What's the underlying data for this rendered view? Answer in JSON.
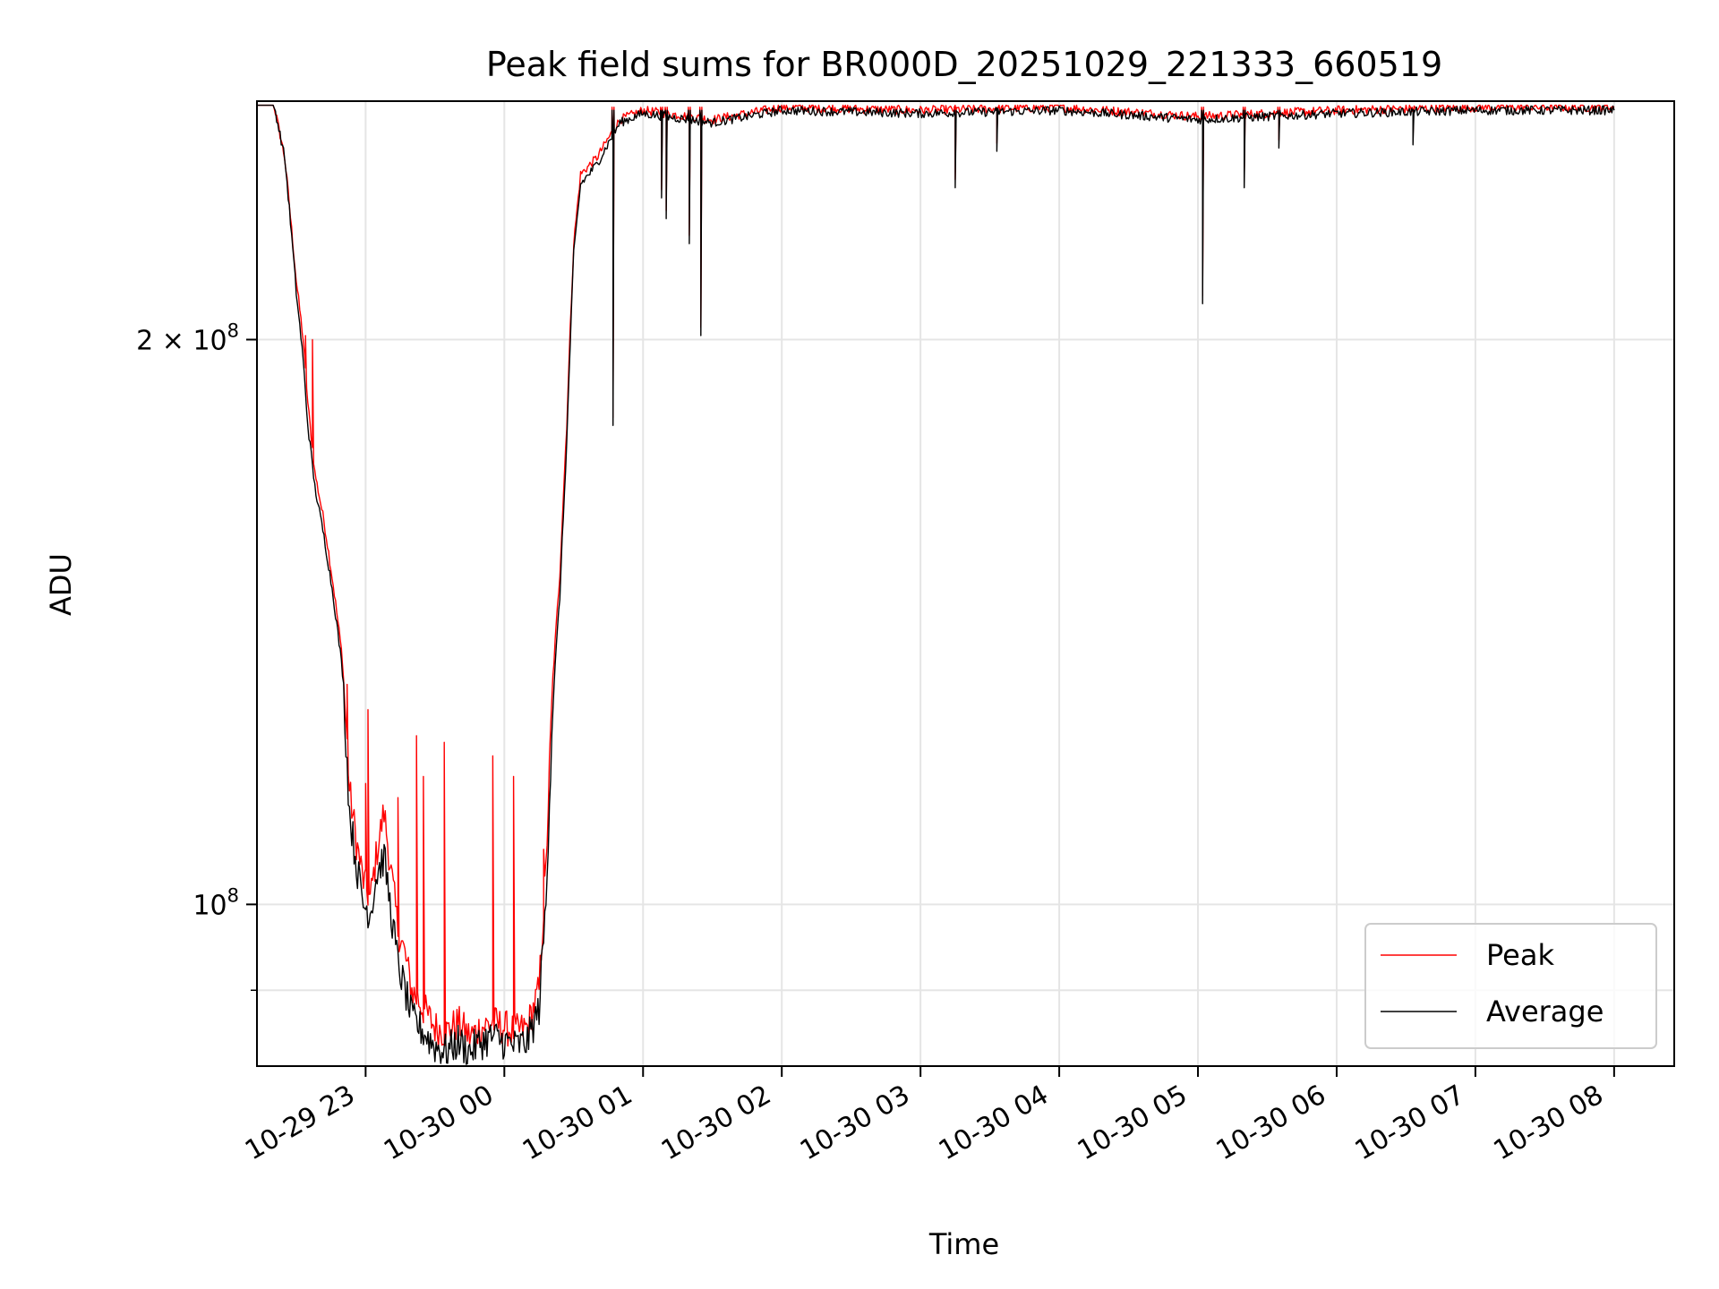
{
  "chart_data": {
    "type": "line",
    "title": "Peak field sums for BR000D_20251029_221333_660519",
    "xlabel": "Time",
    "ylabel": "ADU",
    "x_tick_labels": [
      "10-29 23",
      "10-30 00",
      "10-30 01",
      "10-30 02",
      "10-30 03",
      "10-30 04",
      "10-30 05",
      "10-30 06",
      "10-30 07",
      "10-30 08"
    ],
    "y_tick_labels": [
      {
        "value": 100000000,
        "base": "10",
        "exp": "8",
        "coef": ""
      },
      {
        "value": 200000000,
        "base": "10",
        "exp": "8",
        "coef": "2 × "
      }
    ],
    "y_scale": "log",
    "x_range_hours_rel_2025_10_29T22_00": [
      -0.77,
      9.43
    ],
    "xlim": [
      "2025-10-29 22:13",
      "2025-10-30 08:26"
    ],
    "ylim": [
      82000000,
      268000000
    ],
    "grid": true,
    "legend_position": "lower-right",
    "series": [
      {
        "name": "Peak",
        "color": "#ff0000",
        "points": [
          [
            "2025-10-29 22:13",
            268000000
          ],
          [
            "2025-10-29 22:20",
            268000000
          ],
          [
            "2025-10-29 22:25",
            250000000
          ],
          [
            "2025-10-29 22:30",
            215000000
          ],
          [
            "2025-10-29 22:33",
            200000000
          ],
          [
            "2025-10-29 22:35",
            185000000
          ],
          [
            "2025-10-29 22:38",
            170000000
          ],
          [
            "2025-10-29 22:42",
            160000000
          ],
          [
            "2025-10-29 22:46",
            148000000
          ],
          [
            "2025-10-29 22:50",
            135000000
          ],
          [
            "2025-10-29 22:53",
            115000000
          ],
          [
            "2025-10-29 22:56",
            108000000
          ],
          [
            "2025-10-29 22:59",
            103000000
          ],
          [
            "2025-10-29 23:02",
            100500000
          ],
          [
            "2025-10-29 23:05",
            107000000
          ],
          [
            "2025-10-29 23:08",
            112000000
          ],
          [
            "2025-10-29 23:11",
            104000000
          ],
          [
            "2025-10-29 23:14",
            97000000
          ],
          [
            "2025-10-29 23:17",
            94000000
          ],
          [
            "2025-10-29 23:20",
            90000000
          ],
          [
            "2025-10-29 23:25",
            88000000
          ],
          [
            "2025-10-29 23:30",
            86000000
          ],
          [
            "2025-10-29 23:35",
            85500000
          ],
          [
            "2025-10-29 23:40",
            86500000
          ],
          [
            "2025-10-29 23:45",
            85000000
          ],
          [
            "2025-10-29 23:50",
            86000000
          ],
          [
            "2025-10-29 23:55",
            86500000
          ],
          [
            "2025-10-30 00:00",
            86000000
          ],
          [
            "2025-10-30 00:05",
            85500000
          ],
          [
            "2025-10-30 00:10",
            86000000
          ],
          [
            "2025-10-30 00:15",
            90000000
          ],
          [
            "2025-10-30 00:18",
            104000000
          ],
          [
            "2025-10-30 00:21",
            132000000
          ],
          [
            "2025-10-30 00:24",
            150000000
          ],
          [
            "2025-10-30 00:27",
            180000000
          ],
          [
            "2025-10-30 00:30",
            225000000
          ],
          [
            "2025-10-30 00:33",
            245000000
          ],
          [
            "2025-10-30 00:40",
            250000000
          ],
          [
            "2025-10-30 00:50",
            262000000
          ],
          [
            "2025-10-30 01:00",
            265000000
          ],
          [
            "2025-10-30 01:30",
            262000000
          ],
          [
            "2025-10-30 02:00",
            266000000
          ],
          [
            "2025-10-30 03:00",
            265000000
          ],
          [
            "2025-10-30 04:00",
            266000000
          ],
          [
            "2025-10-30 05:00",
            263000000
          ],
          [
            "2025-10-30 06:00",
            265000000
          ],
          [
            "2025-10-30 07:00",
            266000000
          ],
          [
            "2025-10-30 08:00",
            266000000
          ]
        ]
      },
      {
        "name": "Average",
        "color": "#000000",
        "points": [
          [
            "2025-10-29 22:13",
            268000000
          ],
          [
            "2025-10-29 22:20",
            268000000
          ],
          [
            "2025-10-29 22:25",
            250000000
          ],
          [
            "2025-10-29 22:30",
            212000000
          ],
          [
            "2025-10-29 22:33",
            195000000
          ],
          [
            "2025-10-29 22:35",
            180000000
          ],
          [
            "2025-10-29 22:38",
            167000000
          ],
          [
            "2025-10-29 22:42",
            157000000
          ],
          [
            "2025-10-29 22:46",
            146000000
          ],
          [
            "2025-10-29 22:50",
            133000000
          ],
          [
            "2025-10-29 22:53",
            112000000
          ],
          [
            "2025-10-29 22:56",
            105000000
          ],
          [
            "2025-10-29 22:59",
            100000000
          ],
          [
            "2025-10-29 23:02",
            99000000
          ],
          [
            "2025-10-29 23:05",
            104000000
          ],
          [
            "2025-10-29 23:08",
            106000000
          ],
          [
            "2025-10-29 23:11",
            99000000
          ],
          [
            "2025-10-29 23:14",
            93000000
          ],
          [
            "2025-10-29 23:17",
            90000000
          ],
          [
            "2025-10-29 23:20",
            87000000
          ],
          [
            "2025-10-29 23:25",
            85500000
          ],
          [
            "2025-10-29 23:30",
            84000000
          ],
          [
            "2025-10-29 23:35",
            83500000
          ],
          [
            "2025-10-29 23:40",
            84500000
          ],
          [
            "2025-10-29 23:45",
            83500000
          ],
          [
            "2025-10-29 23:50",
            84500000
          ],
          [
            "2025-10-29 23:55",
            85000000
          ],
          [
            "2025-10-30 00:00",
            84500000
          ],
          [
            "2025-10-30 00:05",
            84000000
          ],
          [
            "2025-10-30 00:10",
            84500000
          ],
          [
            "2025-10-30 00:15",
            88000000
          ],
          [
            "2025-10-30 00:18",
            100000000
          ],
          [
            "2025-10-30 00:21",
            128000000
          ],
          [
            "2025-10-30 00:24",
            146000000
          ],
          [
            "2025-10-30 00:27",
            176000000
          ],
          [
            "2025-10-30 00:30",
            222000000
          ],
          [
            "2025-10-30 00:33",
            242000000
          ],
          [
            "2025-10-30 00:40",
            248000000
          ],
          [
            "2025-10-30 00:50",
            261000000
          ],
          [
            "2025-10-30 01:00",
            264000000
          ],
          [
            "2025-10-30 01:30",
            261000000
          ],
          [
            "2025-10-30 02:00",
            265000000
          ],
          [
            "2025-10-30 03:00",
            264000000
          ],
          [
            "2025-10-30 04:00",
            265000000
          ],
          [
            "2025-10-30 05:00",
            262000000
          ],
          [
            "2025-10-30 06:00",
            264000000
          ],
          [
            "2025-10-30 07:00",
            265000000
          ],
          [
            "2025-10-30 08:00",
            265000000
          ]
        ]
      }
    ],
    "dips": [
      [
        "2025-10-30 00:47",
        180000000
      ],
      [
        "2025-10-30 01:08",
        238000000
      ],
      [
        "2025-10-30 01:10",
        232000000
      ],
      [
        "2025-10-30 01:20",
        225000000
      ],
      [
        "2025-10-30 01:25",
        201000000
      ],
      [
        "2025-10-30 03:15",
        241000000
      ],
      [
        "2025-10-30 03:33",
        252000000
      ],
      [
        "2025-10-30 05:02",
        209000000
      ],
      [
        "2025-10-30 05:20",
        241000000
      ],
      [
        "2025-10-30 05:35",
        253000000
      ],
      [
        "2025-10-30 06:33",
        254000000
      ]
    ],
    "noise_spikes_peak": [
      [
        "2025-10-29 22:34",
        201000000
      ],
      [
        "2025-10-29 22:37",
        200000000
      ],
      [
        "2025-10-29 22:52",
        131000000
      ],
      [
        "2025-10-29 23:00",
        116000000
      ],
      [
        "2025-10-29 23:01",
        127000000
      ],
      [
        "2025-10-29 23:14",
        114000000
      ],
      [
        "2025-10-29 23:22",
        123000000
      ],
      [
        "2025-10-29 23:25",
        117000000
      ],
      [
        "2025-10-29 23:34",
        122000000
      ],
      [
        "2025-10-29 23:55",
        120000000
      ],
      [
        "2025-10-30 00:04",
        117000000
      ],
      [
        "2025-10-30 00:17",
        107000000
      ]
    ]
  }
}
